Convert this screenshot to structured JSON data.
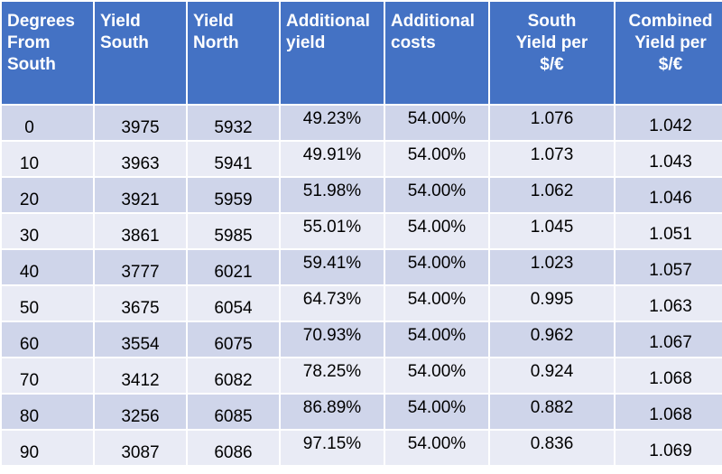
{
  "headers": [
    {
      "lines": [
        "Degrees",
        "From",
        "South"
      ],
      "align": "left"
    },
    {
      "lines": [
        "Yield",
        "South"
      ],
      "align": "left"
    },
    {
      "lines": [
        "Yield",
        "North"
      ],
      "align": "left"
    },
    {
      "lines": [
        "Additional",
        "yield"
      ],
      "align": "left"
    },
    {
      "lines": [
        "Additional",
        "costs"
      ],
      "align": "left"
    },
    {
      "lines": [
        "South",
        "Yield per",
        "$/€"
      ],
      "align": "center"
    },
    {
      "lines": [
        "Combined",
        "Yield per",
        "$/€"
      ],
      "align": "center"
    }
  ],
  "rows": [
    {
      "degrees": "0",
      "yield_south": "3975",
      "yield_north": "5932",
      "additional_yield": "49.23%",
      "additional_costs": "54.00%",
      "south_yield_per": "1.076",
      "combined_yield_per": "1.042"
    },
    {
      "degrees": "10",
      "yield_south": "3963",
      "yield_north": "5941",
      "additional_yield": "49.91%",
      "additional_costs": "54.00%",
      "south_yield_per": "1.073",
      "combined_yield_per": "1.043"
    },
    {
      "degrees": "20",
      "yield_south": "3921",
      "yield_north": "5959",
      "additional_yield": "51.98%",
      "additional_costs": "54.00%",
      "south_yield_per": "1.062",
      "combined_yield_per": "1.046"
    },
    {
      "degrees": "30",
      "yield_south": "3861",
      "yield_north": "5985",
      "additional_yield": "55.01%",
      "additional_costs": "54.00%",
      "south_yield_per": "1.045",
      "combined_yield_per": "1.051"
    },
    {
      "degrees": "40",
      "yield_south": "3777",
      "yield_north": "6021",
      "additional_yield": "59.41%",
      "additional_costs": "54.00%",
      "south_yield_per": "1.023",
      "combined_yield_per": "1.057"
    },
    {
      "degrees": "50",
      "yield_south": "3675",
      "yield_north": "6054",
      "additional_yield": "64.73%",
      "additional_costs": "54.00%",
      "south_yield_per": "0.995",
      "combined_yield_per": "1.063"
    },
    {
      "degrees": "60",
      "yield_south": "3554",
      "yield_north": "6075",
      "additional_yield": "70.93%",
      "additional_costs": "54.00%",
      "south_yield_per": "0.962",
      "combined_yield_per": "1.067"
    },
    {
      "degrees": "70",
      "yield_south": "3412",
      "yield_north": "6082",
      "additional_yield": "78.25%",
      "additional_costs": "54.00%",
      "south_yield_per": "0.924",
      "combined_yield_per": "1.068"
    },
    {
      "degrees": "80",
      "yield_south": "3256",
      "yield_north": "6085",
      "additional_yield": "86.89%",
      "additional_costs": "54.00%",
      "south_yield_per": "0.882",
      "combined_yield_per": "1.068"
    },
    {
      "degrees": "90",
      "yield_south": "3087",
      "yield_north": "6086",
      "additional_yield": "97.15%",
      "additional_costs": "54.00%",
      "south_yield_per": "0.836",
      "combined_yield_per": "1.069"
    }
  ],
  "colors": {
    "header_bg": "#4472c4",
    "header_text": "#ffffff",
    "row_odd_bg": "#cfd5ea",
    "row_even_bg": "#e9ebf5"
  }
}
